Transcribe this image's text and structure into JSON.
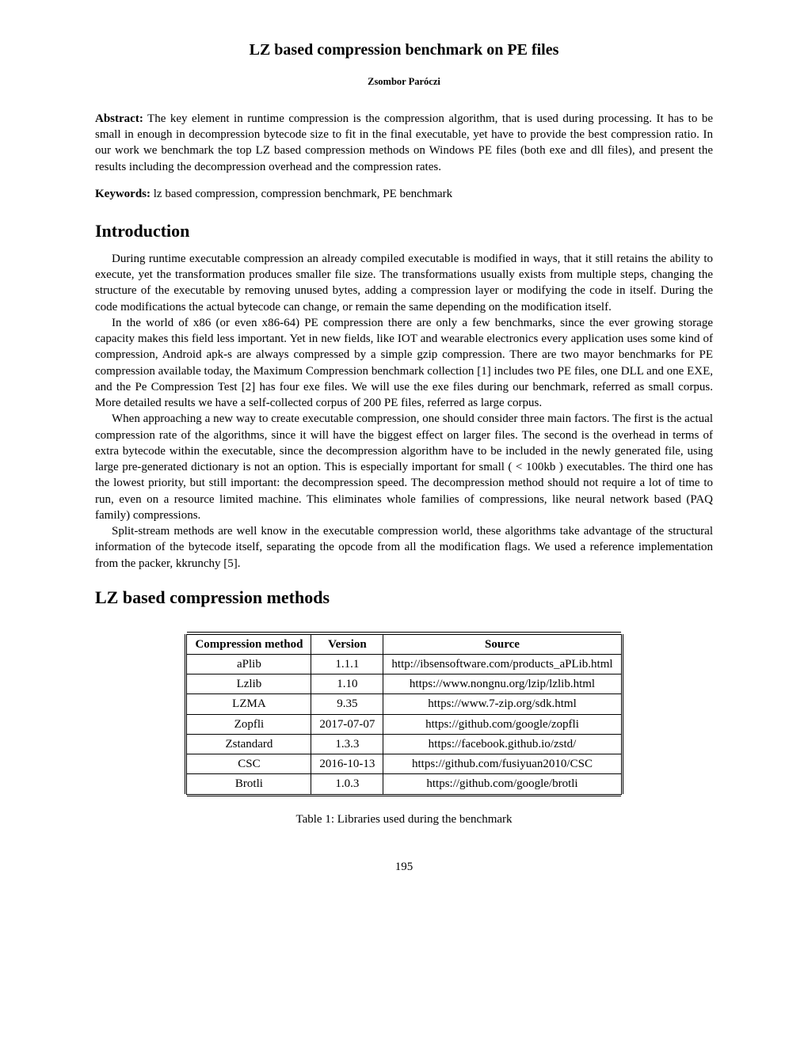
{
  "title": "LZ based compression benchmark on PE files",
  "author": "Zsombor Paróczi",
  "abstract_label": "Abstract:",
  "abstract_text": " The key element in runtime compression is the compression algorithm, that is used during processing. It has to be small in enough in decompression bytecode size to fit in the final executable, yet have to provide the best compression ratio. In our work we benchmark the top LZ based compression methods on Windows PE files (both exe and dll files), and present the results including the decompression overhead and the compression rates.",
  "keywords_label": "Keywords:",
  "keywords_text": " lz based compression, compression benchmark, PE benchmark",
  "section1_heading": "Introduction",
  "para1": "During runtime executable compression an already compiled executable is modified in ways, that it still retains the ability to execute, yet the transformation produces smaller file size. The transformations usually exists from multiple steps, changing the structure of the executable by removing unused bytes, adding a compression layer or modifying the code in itself. During the code modifications the actual bytecode can change, or remain the same depending on the modification itself.",
  "para2": "In the world of x86 (or even x86-64) PE compression there are only a few benchmarks, since the ever growing storage capacity makes this field less important. Yet in new fields, like IOT and wearable electronics every application uses some kind of compression, Android apk-s are always compressed by a simple gzip compression. There are two mayor benchmarks for PE compression available today, the Maximum Compression benchmark collection [1] includes two PE files, one DLL and one EXE, and the Pe Compression Test [2] has four exe files. We will use the exe files during our benchmark, referred as small corpus. More detailed results we have a self-collected corpus of 200 PE files, referred as large corpus.",
  "para3": "When approaching a new way to create executable compression, one should consider three main factors. The first is the actual compression rate of the algorithms, since it will have the biggest effect on larger files. The second is the overhead in terms of extra bytecode within the executable, since the decompression algorithm have to be included in the newly generated file, using large pre-generated dictionary is not an option. This is especially important for small ( < 100kb ) executables. The third one has the lowest priority, but still important: the decompression speed. The decompression method should not require a lot of time to run, even on a resource limited machine. This eliminates whole families of compressions, like neural network based (PAQ family) compressions.",
  "para4": "Split-stream methods are well know in the executable compression world, these algorithms take advantage of the structural information of the bytecode itself, separating the opcode from all the modification flags. We used a reference implementation from the packer, kkrunchy [5].",
  "section2_heading": "LZ based compression methods",
  "table": {
    "columns": [
      "Compression method",
      "Version",
      "Source"
    ],
    "rows": [
      [
        "aPlib",
        "1.1.1",
        "http://ibsensoftware.com/products_aPLib.html"
      ],
      [
        "Lzlib",
        "1.10",
        "https://www.nongnu.org/lzip/lzlib.html"
      ],
      [
        "LZMA",
        "9.35",
        "https://www.7-zip.org/sdk.html"
      ],
      [
        "Zopfli",
        "2017-07-07",
        "https://github.com/google/zopfli"
      ],
      [
        "Zstandard",
        "1.3.3",
        "https://facebook.github.io/zstd/"
      ],
      [
        "CSC",
        "2016-10-13",
        "https://github.com/fusiyuan2010/CSC"
      ],
      [
        "Brotli",
        "1.0.3",
        "https://github.com/google/brotli"
      ]
    ],
    "caption": "Table 1: Libraries used during the benchmark"
  },
  "page_number": "195"
}
